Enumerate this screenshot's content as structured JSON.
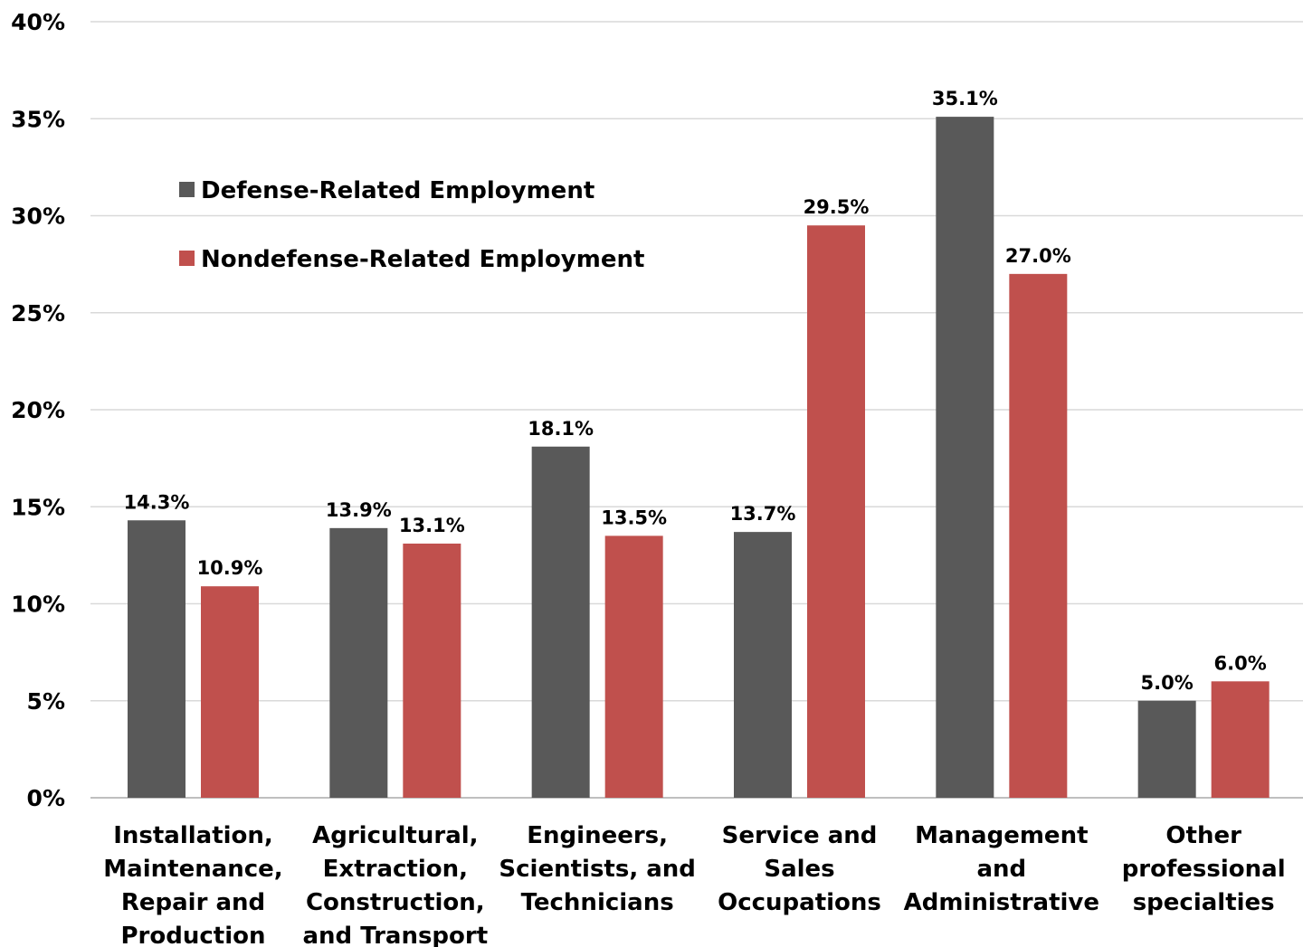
{
  "chart_data": {
    "type": "bar",
    "title": "",
    "xlabel": "",
    "ylabel": "",
    "ylim": [
      0,
      40
    ],
    "yticks": [
      "0%",
      "5%",
      "10%",
      "15%",
      "20%",
      "25%",
      "30%",
      "35%",
      "40%"
    ],
    "grid": true,
    "legend_position": "top-left",
    "categories": [
      [
        "Installation,",
        "Maintenance,",
        "Repair and",
        "Production"
      ],
      [
        "Agricultural,",
        "Extraction,",
        "Construction,",
        "and Transport"
      ],
      [
        "Engineers,",
        "Scientists, and",
        "Technicians"
      ],
      [
        "Service and",
        "Sales",
        "Occupations"
      ],
      [
        "Management",
        "and",
        "Administrative"
      ],
      [
        "Other",
        "professional",
        "specialties"
      ]
    ],
    "series": [
      {
        "name": "Defense-Related Employment",
        "color": "#595959",
        "values": [
          14.3,
          13.9,
          18.1,
          13.7,
          35.1,
          5.0
        ],
        "labels": [
          "14.3%",
          "13.9%",
          "18.1%",
          "13.7%",
          "35.1%",
          "5.0%"
        ]
      },
      {
        "name": "Nondefense-Related Employment",
        "color": "#c0504d",
        "values": [
          10.9,
          13.1,
          13.5,
          29.5,
          27.0,
          6.0
        ],
        "labels": [
          "10.9%",
          "13.1%",
          "13.5%",
          "29.5%",
          "27.0%",
          "6.0%"
        ]
      }
    ]
  }
}
